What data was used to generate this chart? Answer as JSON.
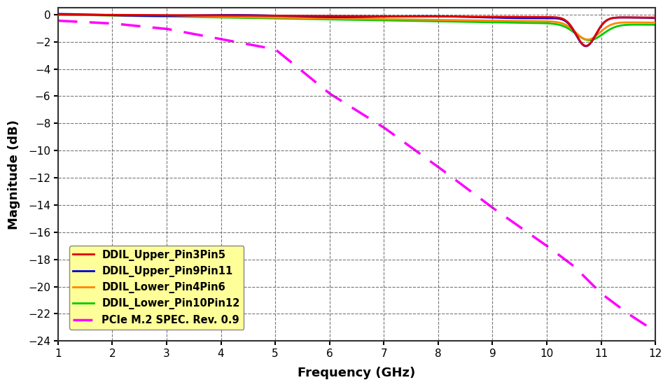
{
  "title": "",
  "xlabel": "Frequency (GHz)",
  "ylabel": "Magnitude (dB)",
  "xlim": [
    1,
    12
  ],
  "ylim": [
    -24,
    0.5
  ],
  "yticks": [
    0,
    -2,
    -4,
    -6,
    -8,
    -10,
    -12,
    -14,
    -16,
    -18,
    -20,
    -22,
    -24
  ],
  "xticks": [
    1,
    2,
    3,
    4,
    5,
    6,
    7,
    8,
    9,
    10,
    11,
    12
  ],
  "background_color": "#ffffff",
  "plot_bg_color": "#ffffff",
  "grid_color": "#555555",
  "legend_entries": [
    "DDIL_Upper_Pin3Pin5",
    "DDIL_Upper_Pin9Pin11",
    "DDIL_Lower_Pin4Pin6",
    "DDIL_Lower_Pin10Pin12",
    "PCIe M.2 SPEC. Rev. 0.9"
  ],
  "line_colors": [
    "#dd0000",
    "#0000dd",
    "#ff8800",
    "#00cc00",
    "#ff00ff"
  ],
  "line_widths": [
    2.0,
    2.0,
    2.0,
    2.0,
    2.5
  ],
  "spec_x": [
    1,
    2,
    3,
    4,
    5,
    6,
    7,
    8,
    9,
    10,
    10.5,
    11,
    11.5,
    12
  ],
  "spec_y": [
    -0.45,
    -0.65,
    -1.05,
    -1.8,
    -2.55,
    -5.8,
    -8.3,
    -11.2,
    -14.2,
    -17.0,
    -18.5,
    -20.5,
    -22.0,
    -23.3
  ]
}
